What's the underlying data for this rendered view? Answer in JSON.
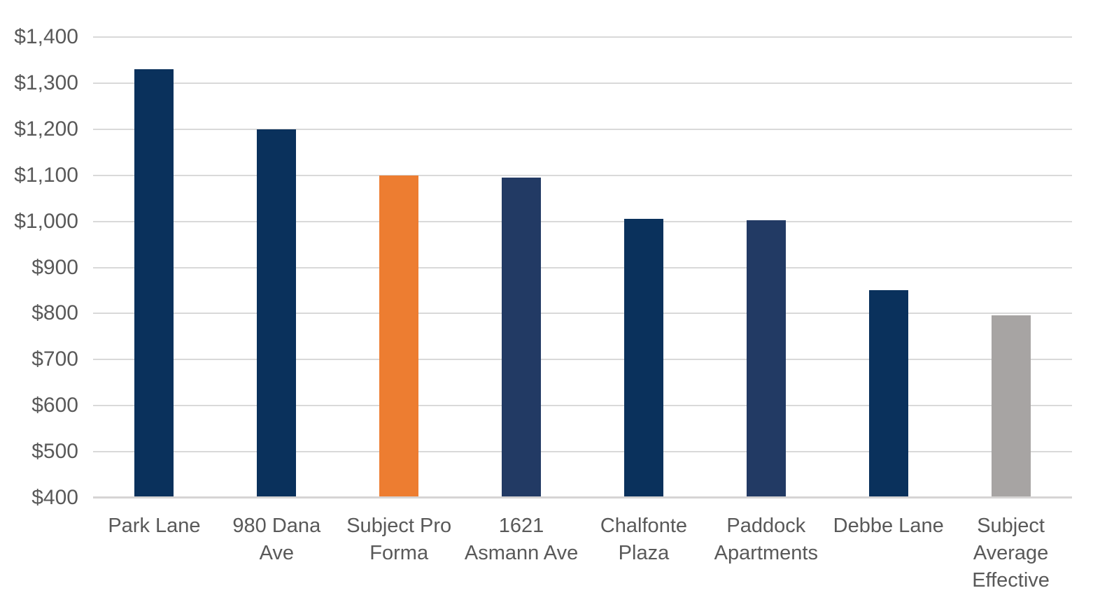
{
  "chart_data": {
    "type": "bar",
    "title": "",
    "xlabel": "",
    "ylabel": "",
    "categories": [
      "Park Lane",
      "980 Dana Ave",
      "Subject Pro Forma",
      "1621 Asmann Ave",
      "Chalfonte Plaza",
      "Paddock Apartments",
      "Debbe Lane",
      "Subject Average Effective"
    ],
    "category_label_lines": [
      [
        "Park Lane"
      ],
      [
        "980 Dana",
        "Ave"
      ],
      [
        "Subject Pro",
        "Forma"
      ],
      [
        "1621",
        "Asmann Ave"
      ],
      [
        "Chalfonte",
        "Plaza"
      ],
      [
        "Paddock",
        "Apartments"
      ],
      [
        "Debbe Lane"
      ],
      [
        "Subject",
        "Average",
        "Effective"
      ]
    ],
    "values": [
      1330,
      1200,
      1100,
      1095,
      1005,
      1003,
      850,
      796
    ],
    "bar_colors": [
      "#0A315C",
      "#0A315C",
      "#ED7D31",
      "#223A64",
      "#0A315C",
      "#223A64",
      "#0A315C",
      "#A7A4A3"
    ],
    "ylim": [
      400,
      1400
    ],
    "yticks": [
      {
        "value": 1400,
        "label": "$1,400"
      },
      {
        "value": 1300,
        "label": "$1,300"
      },
      {
        "value": 1200,
        "label": "$1,200"
      },
      {
        "value": 1100,
        "label": "$1,100"
      },
      {
        "value": 1000,
        "label": "$1,000"
      },
      {
        "value": 900,
        "label": "$900"
      },
      {
        "value": 800,
        "label": "$800"
      },
      {
        "value": 700,
        "label": "$700"
      },
      {
        "value": 600,
        "label": "$600"
      },
      {
        "value": 500,
        "label": "$500"
      },
      {
        "value": 400,
        "label": "$400"
      }
    ],
    "grid": true,
    "legend": false,
    "colors": {
      "navy_dark": "#0A315C",
      "navy_light": "#223A64",
      "orange_highlight": "#ED7D31",
      "gray_average": "#A7A4A3",
      "gridline": "#D9D9D9",
      "axis_text": "#595959",
      "background": "#FFFFFF"
    }
  }
}
